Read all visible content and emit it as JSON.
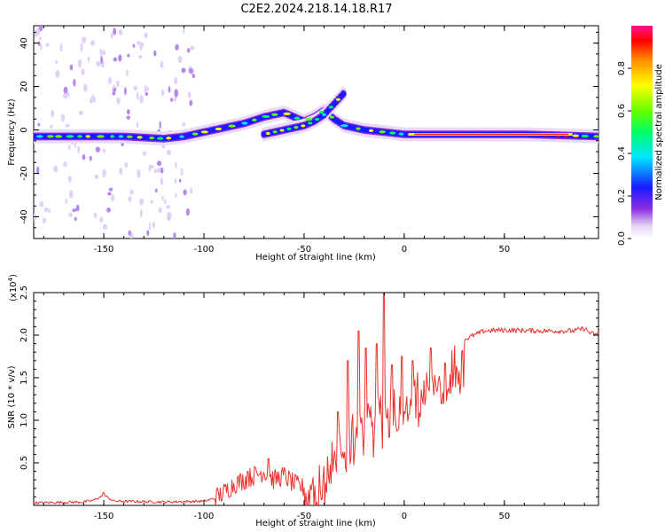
{
  "title": "C2E2.2024.218.14.18.R17",
  "colors": {
    "line": "#e8332e",
    "axis": "#000000"
  },
  "chart_data": [
    {
      "type": "heatmap",
      "name": "spectrogram",
      "xlabel": "Height of straight line (km)",
      "ylabel": "Frequency (Hz)",
      "xlim": [
        -185,
        97
      ],
      "ylim": [
        -50,
        48
      ],
      "xticks": [
        -150,
        -100,
        -50,
        0,
        50
      ],
      "yticks": [
        -40,
        -20,
        0,
        20,
        40
      ],
      "xtick_labels": [
        "-150",
        "-100",
        "-50",
        "0",
        "50"
      ],
      "ytick_labels": [
        "-40",
        "-20",
        "0",
        "20",
        "40"
      ],
      "ridge": [
        [
          -185,
          -3
        ],
        [
          -160,
          -3
        ],
        [
          -140,
          -3
        ],
        [
          -120,
          -4
        ],
        [
          -110,
          -3
        ],
        [
          -100,
          -1
        ],
        [
          -90,
          1
        ],
        [
          -80,
          3
        ],
        [
          -70,
          6
        ],
        [
          -60,
          8
        ],
        [
          -50,
          4
        ],
        [
          -45,
          6
        ],
        [
          -40,
          9
        ],
        [
          -35,
          5
        ],
        [
          -30,
          2
        ],
        [
          -20,
          0
        ],
        [
          0,
          -2
        ],
        [
          30,
          -2
        ],
        [
          60,
          -2
        ],
        [
          97,
          -3
        ]
      ],
      "secondary_ridge": [
        [
          -70,
          -2
        ],
        [
          -60,
          0
        ],
        [
          -50,
          2
        ],
        [
          -45,
          4
        ],
        [
          -40,
          7
        ],
        [
          -35,
          12
        ],
        [
          -30,
          17
        ]
      ]
    },
    {
      "type": "colorbar",
      "name": "amplitude-colorbar",
      "label": "Normalized spectral amplitude",
      "range": [
        0,
        1
      ],
      "ticks": [
        0.0,
        0.2,
        0.4,
        0.6,
        0.8
      ],
      "tick_labels": [
        "0.0",
        "0.2",
        "0.4",
        "0.6",
        "0.8"
      ]
    },
    {
      "type": "line",
      "name": "snr-line",
      "xlabel": "Height of straight line (km)",
      "ylabel": "SNR (10 * v/v)",
      "scale_label": "(x10",
      "scale_exponent": "4",
      "xlim": [
        -185,
        97
      ],
      "ylim": [
        0,
        2.5
      ],
      "xticks": [
        -150,
        -100,
        -50,
        0,
        50
      ],
      "yticks": [
        0.5,
        1.0,
        1.5,
        2.0,
        2.5
      ],
      "xtick_labels": [
        "-150",
        "-100",
        "-50",
        "0",
        "50"
      ],
      "ytick_labels": [
        "0.5",
        "1.0",
        "1.5",
        "2.0",
        "2.5"
      ],
      "envelope": [
        [
          -185,
          0.03
        ],
        [
          -160,
          0.04
        ],
        [
          -155,
          0.06
        ],
        [
          -150,
          0.12
        ],
        [
          -145,
          0.05
        ],
        [
          -120,
          0.04
        ],
        [
          -100,
          0.05
        ],
        [
          -95,
          0.08
        ],
        [
          -90,
          0.15
        ],
        [
          -85,
          0.25
        ],
        [
          -80,
          0.3
        ],
        [
          -75,
          0.35
        ],
        [
          -70,
          0.4
        ],
        [
          -65,
          0.3
        ],
        [
          -60,
          0.35
        ],
        [
          -55,
          0.25
        ],
        [
          -50,
          0.2
        ],
        [
          -45,
          0.45
        ],
        [
          -40,
          0.6
        ],
        [
          -35,
          0.8
        ],
        [
          -30,
          1.0
        ],
        [
          -25,
          1.15
        ],
        [
          -20,
          1.2
        ],
        [
          -15,
          1.3
        ],
        [
          -10,
          1.4
        ],
        [
          -5,
          1.45
        ],
        [
          0,
          1.5
        ],
        [
          5,
          1.55
        ],
        [
          10,
          1.6
        ],
        [
          15,
          1.7
        ],
        [
          20,
          1.75
        ],
        [
          25,
          1.85
        ],
        [
          30,
          1.95
        ],
        [
          35,
          2.0
        ],
        [
          40,
          2.05
        ],
        [
          50,
          2.06
        ],
        [
          70,
          2.05
        ],
        [
          85,
          2.05
        ],
        [
          90,
          2.08
        ],
        [
          93,
          2.02
        ],
        [
          97,
          2.0
        ]
      ],
      "spikes": [
        [
          -10,
          2.55
        ],
        [
          -23,
          2.05
        ],
        [
          -28,
          1.7
        ],
        [
          -33,
          1.1
        ],
        [
          -19,
          1.85
        ],
        [
          -14,
          1.9
        ],
        [
          -6,
          1.65
        ],
        [
          -1,
          1.75
        ],
        [
          4,
          1.7
        ],
        [
          13,
          1.85
        ],
        [
          -68,
          0.55
        ],
        [
          -78,
          0.4
        ],
        [
          -150,
          0.15
        ]
      ]
    }
  ]
}
